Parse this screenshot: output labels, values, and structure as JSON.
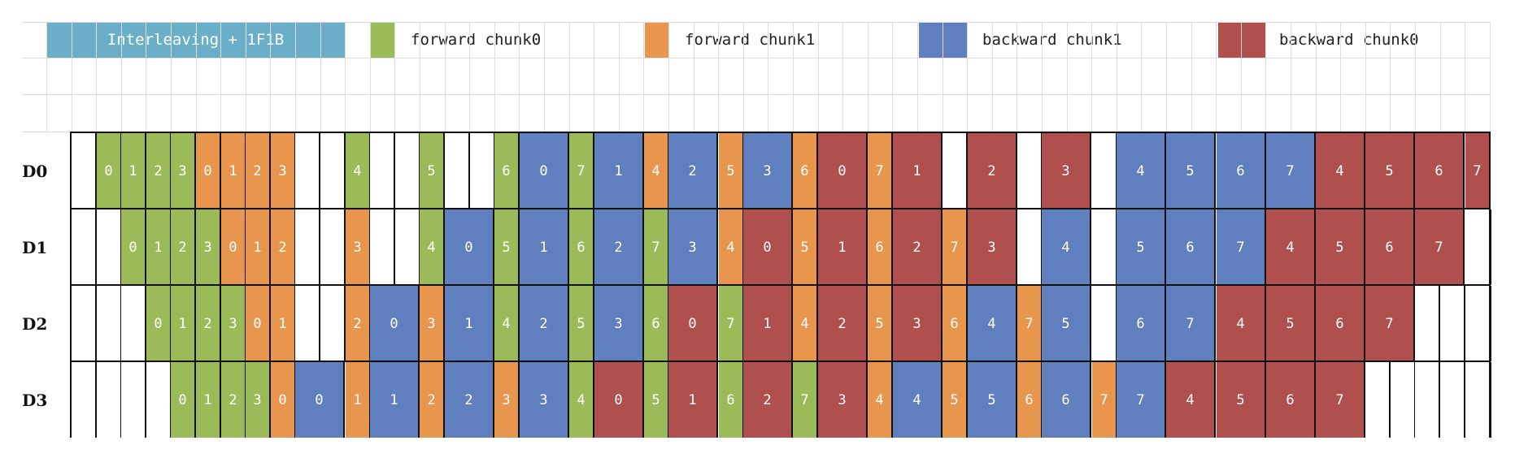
{
  "title": "Interleaving + 1F1B",
  "legend": [
    {
      "label": "forward chunk0",
      "color": "#9bbb59"
    },
    {
      "label": "forward chunk1",
      "color": "#e8954d"
    },
    {
      "label": "backward chunk1",
      "color": "#5f7fbf"
    },
    {
      "label": "backward chunk0",
      "color": "#b0504e"
    }
  ],
  "colors": {
    "F0": "#9bbb59",
    "F1": "#e8954d",
    "B1": "#5f7fbf",
    "B0": "#b0504e",
    "E": "#ffffff"
  },
  "devices": [
    {
      "label": "D0",
      "cells": [
        "E:",
        "F0:0",
        "F0:1",
        "F0:2",
        "F0:3",
        "F1:0",
        "F1:1",
        "F1:2",
        "F1:3",
        "E:",
        "E:",
        "F0:4",
        "E:",
        "E:",
        "F0:5",
        "E:",
        "E:",
        "F0:6",
        "B1:0",
        "B1:0",
        "F0:7",
        "B1:1",
        "B1:1",
        "F1:4",
        "B1:2",
        "B1:2",
        "F1:5",
        "B1:3",
        "B1:3",
        "F1:6",
        "B0:0",
        "B0:0",
        "F1:7",
        "B0:1",
        "B0:1",
        "E:",
        "B0:2",
        "B0:2",
        "E:",
        "B0:3",
        "B0:3",
        "E:",
        "B1:4",
        "B1:4",
        "B1:5",
        "B1:5",
        "B1:6",
        "B1:6",
        "B1:7",
        "B1:7",
        "B0:4",
        "B0:4",
        "B0:5",
        "B0:5",
        "B0:6",
        "B0:6",
        "B0:7",
        "B0:7"
      ]
    },
    {
      "label": "D1",
      "cells": [
        "E:",
        "E:",
        "F0:0",
        "F0:1",
        "F0:2",
        "F0:3",
        "F1:0",
        "F1:1",
        "F1:2",
        "E:",
        "E:",
        "F1:3",
        "E:",
        "E:",
        "F0:4",
        "B1:0",
        "B1:0",
        "F0:5",
        "B1:1",
        "B1:1",
        "F0:6",
        "B1:2",
        "B1:2",
        "F0:7",
        "B1:3",
        "B1:3",
        "F1:4",
        "B0:0",
        "B0:0",
        "F1:5",
        "B0:1",
        "B0:1",
        "F1:6",
        "B0:2",
        "B0:2",
        "F1:7",
        "B0:3",
        "B0:3",
        "E:",
        "B1:4",
        "B1:4",
        "E:",
        "B1:5",
        "B1:5",
        "B1:6",
        "B1:6",
        "B1:7",
        "B1:7",
        "B0:4",
        "B0:4",
        "B0:5",
        "B0:5",
        "B0:6",
        "B0:6",
        "B0:7",
        "B0:7",
        "E:",
        "E:"
      ]
    },
    {
      "label": "D2",
      "cells": [
        "E:",
        "E:",
        "E:",
        "F0:0",
        "F0:1",
        "F0:2",
        "F0:3",
        "F1:0",
        "F1:1",
        "E:",
        "E:",
        "F1:2",
        "B1:0",
        "B1:0",
        "F1:3",
        "B1:1",
        "B1:1",
        "F0:4",
        "B1:2",
        "B1:2",
        "F0:5",
        "B1:3",
        "B1:3",
        "F0:6",
        "B0:0",
        "B0:0",
        "F0:7",
        "B0:1",
        "B0:1",
        "F1:4",
        "B0:2",
        "B0:2",
        "F1:5",
        "B0:3",
        "B0:3",
        "F1:6",
        "B1:4",
        "B1:4",
        "F1:7",
        "B1:5",
        "B1:5",
        "E:",
        "B1:6",
        "B1:6",
        "B1:7",
        "B1:7",
        "B0:4",
        "B0:4",
        "B0:5",
        "B0:5",
        "B0:6",
        "B0:6",
        "B0:7",
        "B0:7",
        "E:",
        "E:",
        "E:",
        "E:"
      ]
    },
    {
      "label": "D3",
      "cells": [
        "E:",
        "E:",
        "E:",
        "E:",
        "F0:0",
        "F0:1",
        "F0:2",
        "F0:3",
        "F1:0",
        "B1:0",
        "B1:0",
        "F1:1",
        "B1:1",
        "B1:1",
        "F1:2",
        "B1:2",
        "B1:2",
        "F1:3",
        "B1:3",
        "B1:3",
        "F0:4",
        "B0:0",
        "B0:0",
        "F0:5",
        "B0:1",
        "B0:1",
        "F0:6",
        "B0:2",
        "B0:2",
        "F0:7",
        "B0:3",
        "B0:3",
        "F1:4",
        "B1:4",
        "B1:4",
        "F1:5",
        "B1:5",
        "B1:5",
        "F1:6",
        "B1:6",
        "B1:6",
        "F1:7",
        "B1:7",
        "B1:7",
        "B0:4",
        "B0:4",
        "B0:5",
        "B0:5",
        "B0:6",
        "B0:6",
        "B0:7",
        "B0:7",
        "E:",
        "E:",
        "E:",
        "E:",
        "E:",
        "E:"
      ]
    }
  ]
}
